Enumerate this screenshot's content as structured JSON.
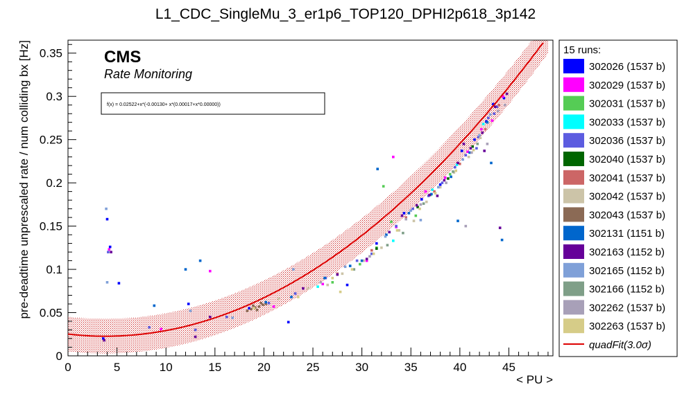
{
  "chart_data": {
    "type": "scatter",
    "title": "L1_CDC_SingleMu_3_er1p6_TOP120_DPHI2p618_3p142",
    "xlabel": "< PU >",
    "ylabel": "pre-deadtime unprescaled rate / num colliding bx [Hz]",
    "xlim": [
      0,
      49.5
    ],
    "ylim": [
      0,
      0.365
    ],
    "x_ticks": [
      "0",
      "5",
      "10",
      "15",
      "20",
      "25",
      "30",
      "35",
      "40",
      "45"
    ],
    "y_ticks": [
      "0",
      "0.05",
      "0.1",
      "0.15",
      "0.2",
      "0.25",
      "0.3",
      "0.35"
    ],
    "grid": false,
    "legend_position": "right",
    "annotations": {
      "experiment": "CMS",
      "subtitle": "Rate Monitoring",
      "fit_formula": "f(x) = 0.02522+x*(-0.00130+ x*(0.00017+x*0.00000))"
    },
    "legend": {
      "header": "15 runs:",
      "fit_label": "quadFit(3.0σ)"
    },
    "fit": {
      "a": 0.02522,
      "b": -0.0013,
      "c": 0.00017,
      "d": 0.0,
      "band": 0.02,
      "color": "#dd0000"
    },
    "series": [
      {
        "name": "302026 (1537 b)",
        "color": "#0000ff",
        "points": [
          [
            3.6,
            0.02
          ],
          [
            4.0,
            0.158
          ],
          [
            4.3,
            0.126
          ],
          [
            5.2,
            0.084
          ],
          [
            12.3,
            0.06
          ],
          [
            18.5,
            0.055
          ],
          [
            22.5,
            0.039
          ],
          [
            28.5,
            0.082
          ],
          [
            31.5,
            0.13
          ],
          [
            34.3,
            0.165
          ],
          [
            36.1,
            0.181
          ],
          [
            38.0,
            0.198
          ],
          [
            40.2,
            0.237
          ],
          [
            41.5,
            0.25
          ],
          [
            42.7,
            0.271
          ],
          [
            43.4,
            0.291
          ],
          [
            44.5,
            0.298
          ]
        ]
      },
      {
        "name": "302029 (1537 b)",
        "color": "#ff00ff",
        "points": [
          [
            4.2,
            0.123
          ],
          [
            9.5,
            0.031
          ],
          [
            14.5,
            0.098
          ],
          [
            21.0,
            0.057
          ],
          [
            26.0,
            0.083
          ],
          [
            30.5,
            0.11
          ],
          [
            33.5,
            0.149
          ],
          [
            36.5,
            0.19
          ],
          [
            38.5,
            0.206
          ],
          [
            40.8,
            0.236
          ],
          [
            42.2,
            0.262
          ],
          [
            43.3,
            0.272
          ],
          [
            44.4,
            0.3
          ],
          [
            33.2,
            0.23
          ]
        ]
      },
      {
        "name": "302031 (1537 b)",
        "color": "#55cc55",
        "points": [
          [
            27.0,
            0.085
          ],
          [
            29.8,
            0.106
          ],
          [
            31.5,
            0.125
          ],
          [
            33.0,
            0.155
          ],
          [
            35.5,
            0.162
          ],
          [
            37.0,
            0.186
          ],
          [
            39.0,
            0.21
          ],
          [
            32.2,
            0.196
          ]
        ]
      },
      {
        "name": "302033 (1537 b)",
        "color": "#00ffff",
        "points": [
          [
            25.5,
            0.08
          ],
          [
            33.2,
            0.133
          ],
          [
            37.2,
            0.192
          ],
          [
            39.7,
            0.221
          ],
          [
            42.4,
            0.268
          ]
        ]
      },
      {
        "name": "302036 (1537 b)",
        "color": "#5c5ce0",
        "points": [
          [
            4.1,
            0.12
          ],
          [
            8.3,
            0.033
          ],
          [
            13.0,
            0.03
          ],
          [
            16.2,
            0.045
          ],
          [
            20.5,
            0.061
          ],
          [
            23.2,
            0.072
          ],
          [
            26.3,
            0.09
          ],
          [
            29.5,
            0.11
          ],
          [
            31.0,
            0.118
          ],
          [
            33.5,
            0.15
          ],
          [
            35.2,
            0.17
          ],
          [
            36.8,
            0.185
          ],
          [
            38.2,
            0.2
          ],
          [
            39.5,
            0.218
          ],
          [
            40.6,
            0.232
          ],
          [
            41.9,
            0.253
          ],
          [
            42.9,
            0.275
          ],
          [
            43.8,
            0.288
          ],
          [
            41.7,
            0.24
          ],
          [
            43.5,
            0.28
          ]
        ]
      },
      {
        "name": "302040 (1537 b)",
        "color": "#006600",
        "points": [
          [
            31.5,
            0.124
          ],
          [
            35.7,
            0.172
          ],
          [
            38.8,
            0.205
          ],
          [
            41.3,
            0.242
          ]
        ]
      },
      {
        "name": "302041 (1537 b)",
        "color": "#cc6666",
        "points": [
          [
            27.5,
            0.095
          ],
          [
            31.0,
            0.122
          ],
          [
            34.5,
            0.16
          ],
          [
            37.4,
            0.19
          ],
          [
            40.0,
            0.222
          ],
          [
            42.6,
            0.262
          ],
          [
            44.0,
            0.29
          ]
        ]
      },
      {
        "name": "302042 (1537 b)",
        "color": "#ccc4a8",
        "points": [
          [
            21.5,
            0.066
          ],
          [
            24.5,
            0.078
          ],
          [
            26.5,
            0.082
          ],
          [
            28.0,
            0.095
          ],
          [
            30.2,
            0.11
          ],
          [
            32.0,
            0.125
          ],
          [
            33.8,
            0.145
          ],
          [
            35.3,
            0.156
          ],
          [
            36.6,
            0.178
          ],
          [
            38.0,
            0.195
          ],
          [
            39.4,
            0.212
          ],
          [
            40.9,
            0.23
          ],
          [
            42.1,
            0.252
          ]
        ]
      },
      {
        "name": "302043 (1537 b)",
        "color": "#8b6a55",
        "points": [
          [
            18.3,
            0.052
          ],
          [
            18.7,
            0.054
          ],
          [
            19.1,
            0.056
          ],
          [
            19.5,
            0.057
          ],
          [
            19.9,
            0.059
          ],
          [
            20.2,
            0.06
          ],
          [
            18.9,
            0.058
          ],
          [
            19.3,
            0.053
          ],
          [
            19.7,
            0.061
          ]
        ]
      },
      {
        "name": "302131 (1151 b)",
        "color": "#0066cc",
        "points": [
          [
            8.8,
            0.058
          ],
          [
            12.0,
            0.1
          ],
          [
            13.5,
            0.11
          ],
          [
            20.2,
            0.062
          ],
          [
            22.8,
            0.068
          ],
          [
            26.2,
            0.09
          ],
          [
            28.8,
            0.104
          ],
          [
            30.0,
            0.11
          ],
          [
            32.5,
            0.14
          ],
          [
            34.8,
            0.165
          ],
          [
            37.1,
            0.187
          ],
          [
            39.1,
            0.207
          ],
          [
            41.0,
            0.235
          ],
          [
            42.8,
            0.27
          ],
          [
            44.3,
            0.134
          ],
          [
            31.6,
            0.216
          ],
          [
            39.8,
            0.156
          ],
          [
            43.2,
            0.223
          ]
        ]
      },
      {
        "name": "302163 (1152 b)",
        "color": "#660099",
        "points": [
          [
            3.7,
            0.018
          ],
          [
            4.4,
            0.12
          ],
          [
            13.0,
            0.022
          ],
          [
            14.5,
            0.045
          ],
          [
            24.0,
            0.078
          ],
          [
            27.5,
            0.094
          ],
          [
            30.5,
            0.112
          ],
          [
            32.8,
            0.143
          ],
          [
            34.1,
            0.162
          ],
          [
            35.6,
            0.174
          ],
          [
            36.9,
            0.186
          ],
          [
            38.4,
            0.203
          ],
          [
            39.8,
            0.223
          ],
          [
            41.1,
            0.24
          ],
          [
            42.3,
            0.258
          ],
          [
            43.6,
            0.288
          ],
          [
            44.8,
            0.303
          ],
          [
            44.1,
            0.148
          ],
          [
            42.5,
            0.237
          ],
          [
            37.7,
            0.185
          ],
          [
            40.4,
            0.245
          ]
        ]
      },
      {
        "name": "302165 (1152 b)",
        "color": "#7fa0d8",
        "points": [
          [
            3.9,
            0.17
          ],
          [
            4.0,
            0.085
          ],
          [
            12.5,
            0.052
          ],
          [
            16.8,
            0.044
          ],
          [
            23.0,
            0.1
          ],
          [
            28.3,
            0.103
          ],
          [
            32.4,
            0.138
          ],
          [
            35.0,
            0.168
          ],
          [
            37.8,
            0.195
          ],
          [
            40.3,
            0.227
          ],
          [
            42.0,
            0.255
          ],
          [
            43.1,
            0.279
          ],
          [
            36.0,
            0.157
          ]
        ]
      },
      {
        "name": "302166 (1152 b)",
        "color": "#7f9f88",
        "points": [
          [
            29.2,
            0.1
          ],
          [
            32.6,
            0.128
          ],
          [
            36.3,
            0.176
          ],
          [
            39.3,
            0.213
          ],
          [
            41.8,
            0.245
          ],
          [
            34.2,
            0.142
          ]
        ]
      },
      {
        "name": "302262 (1537 b)",
        "color": "#a8a0b8",
        "points": [
          [
            25.8,
            0.085
          ],
          [
            30.8,
            0.115
          ],
          [
            34.5,
            0.158
          ],
          [
            36.0,
            0.175
          ],
          [
            38.6,
            0.2
          ],
          [
            40.6,
            0.15
          ],
          [
            42.8,
            0.245
          ],
          [
            41.2,
            0.235
          ],
          [
            43.9,
            0.283
          ],
          [
            44.6,
            0.29
          ]
        ]
      },
      {
        "name": "302263 (1537 b)",
        "color": "#d6cc88",
        "points": [
          [
            19.0,
            0.055
          ],
          [
            23.5,
            0.068
          ],
          [
            27.0,
            0.09
          ],
          [
            29.0,
            0.1
          ],
          [
            31.2,
            0.118
          ],
          [
            33.6,
            0.145
          ],
          [
            35.9,
            0.17
          ],
          [
            37.5,
            0.188
          ],
          [
            39.6,
            0.214
          ],
          [
            41.4,
            0.238
          ],
          [
            27.8,
            0.074
          ]
        ]
      }
    ]
  }
}
